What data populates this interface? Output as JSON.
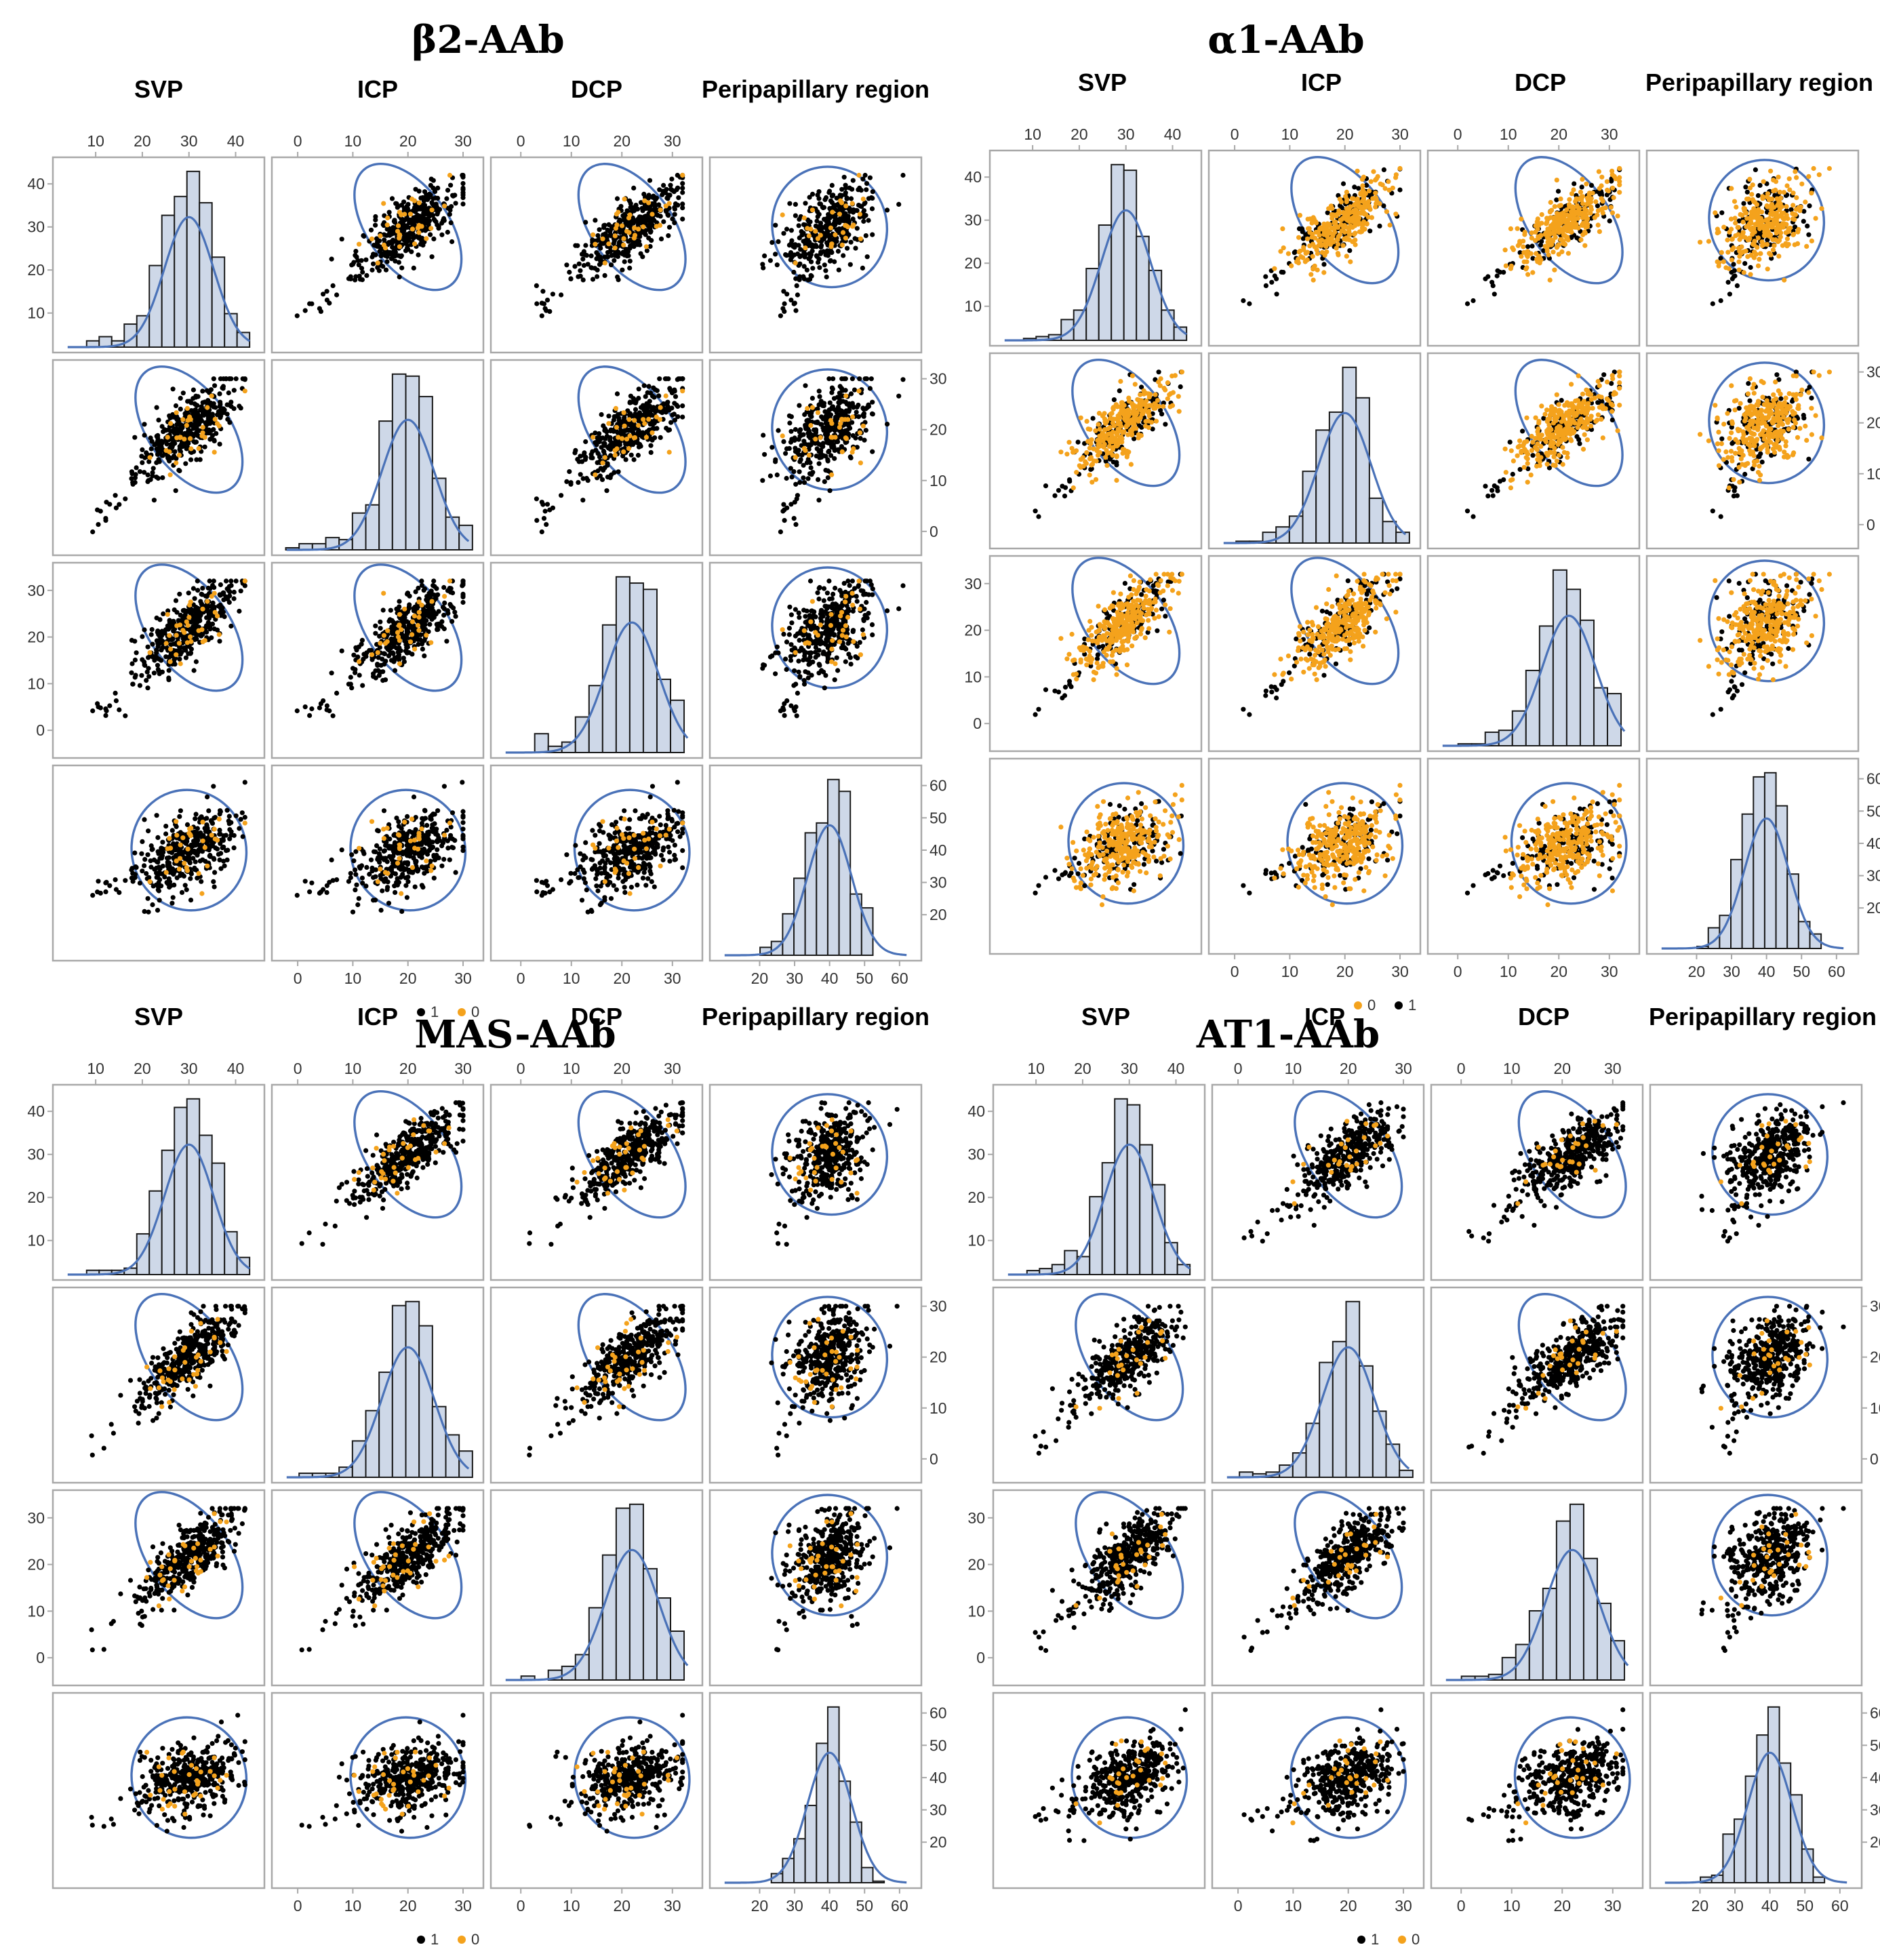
{
  "colors": {
    "group_1": "#000000",
    "group_0": "#f4a21c",
    "ellipse": "#4a72b8",
    "histogram_fill": "#ced8e8",
    "frame": "#a8a8a8"
  },
  "chart_data": [
    {
      "type": "scatter",
      "subtype": "scatterplot-matrix",
      "title": "β2-AAb",
      "variables": [
        "SVP",
        "ICP",
        "DCP",
        "Peripapillary  region"
      ],
      "variable_ranges": {
        "SVP": [
          4,
          43
        ],
        "ICP": [
          -2,
          31
        ],
        "DCP": [
          -3,
          33
        ],
        "Peripapillary  region": [
          10,
          62
        ]
      },
      "axis_ticks": {
        "SVP": [
          "10",
          "20",
          "30",
          "40"
        ],
        "ICP": [
          "0",
          "10",
          "20",
          "30"
        ],
        "DCP": [
          "0",
          "10",
          "20",
          "30"
        ],
        "Peripapillary  region": [
          "20",
          "30",
          "40",
          "50",
          "60"
        ]
      },
      "means": {
        "SVP": 30,
        "ICP": 20,
        "DCP": 22,
        "Peripapillary  region": 40
      },
      "stdevs": {
        "SVP": 5,
        "ICP": 4.5,
        "DCP": 5,
        "Peripapillary  region": 6
      },
      "legend": {
        "first": {
          "label": "1",
          "group": "1"
        },
        "second": {
          "label": "0",
          "group": "0"
        }
      },
      "group0_share": 0.12,
      "n_points": 430,
      "prediction_ellipse": true,
      "diagonal": "histogram with normal density curve"
    },
    {
      "type": "scatter",
      "subtype": "scatterplot-matrix",
      "title": "α1-AAb",
      "variables": [
        "SVP",
        "ICP",
        "DCP",
        "Peripapillary  region"
      ],
      "variable_ranges": {
        "SVP": [
          4,
          43
        ],
        "ICP": [
          -2,
          31
        ],
        "DCP": [
          -3,
          33
        ],
        "Peripapillary  region": [
          10,
          62
        ]
      },
      "axis_ticks": {
        "SVP": [
          "10",
          "20",
          "30",
          "40"
        ],
        "ICP": [
          "0",
          "10",
          "20",
          "30"
        ],
        "DCP": [
          "0",
          "10",
          "20",
          "30"
        ],
        "Peripapillary  region": [
          "20",
          "30",
          "40",
          "50",
          "60"
        ]
      },
      "means": {
        "SVP": 30,
        "ICP": 20,
        "DCP": 22,
        "Peripapillary  region": 40
      },
      "stdevs": {
        "SVP": 5,
        "ICP": 4.5,
        "DCP": 5,
        "Peripapillary  region": 6
      },
      "legend": {
        "first": {
          "label": "0",
          "group": "0"
        },
        "second": {
          "label": "1",
          "group": "1"
        }
      },
      "group0_share": 0.72,
      "n_points": 430,
      "prediction_ellipse": true,
      "diagonal": "histogram with normal density curve"
    },
    {
      "type": "scatter",
      "subtype": "scatterplot-matrix",
      "title": "MAS-AAb",
      "variables": [
        "SVP",
        "ICP",
        "DCP",
        "Peripapillary  region"
      ],
      "variable_ranges": {
        "SVP": [
          4,
          43
        ],
        "ICP": [
          -2,
          31
        ],
        "DCP": [
          -3,
          33
        ],
        "Peripapillary  region": [
          10,
          62
        ]
      },
      "axis_ticks": {
        "SVP": [
          "10",
          "20",
          "30",
          "40"
        ],
        "ICP": [
          "0",
          "10",
          "20",
          "30"
        ],
        "DCP": [
          "0",
          "10",
          "20",
          "30"
        ],
        "Peripapillary  region": [
          "20",
          "30",
          "40",
          "50",
          "60"
        ]
      },
      "means": {
        "SVP": 30,
        "ICP": 20,
        "DCP": 22,
        "Peripapillary  region": 40
      },
      "stdevs": {
        "SVP": 5,
        "ICP": 4.5,
        "DCP": 5,
        "Peripapillary  region": 6
      },
      "legend": {
        "first": {
          "label": "1",
          "group": "1"
        },
        "second": {
          "label": "0",
          "group": "0"
        }
      },
      "group0_share": 0.1,
      "n_points": 430,
      "prediction_ellipse": true,
      "diagonal": "histogram with normal density curve"
    },
    {
      "type": "scatter",
      "subtype": "scatterplot-matrix",
      "title": "AT1-AAb",
      "variables": [
        "SVP",
        "ICP",
        "DCP",
        "Peripapillary  region"
      ],
      "variable_ranges": {
        "SVP": [
          4,
          43
        ],
        "ICP": [
          -2,
          31
        ],
        "DCP": [
          -3,
          33
        ],
        "Peripapillary  region": [
          10,
          62
        ]
      },
      "axis_ticks": {
        "SVP": [
          "10",
          "20",
          "30",
          "40"
        ],
        "ICP": [
          "0",
          "10",
          "20",
          "30"
        ],
        "DCP": [
          "0",
          "10",
          "20",
          "30"
        ],
        "Peripapillary  region": [
          "20",
          "30",
          "40",
          "50",
          "60"
        ]
      },
      "means": {
        "SVP": 30,
        "ICP": 20,
        "DCP": 22,
        "Peripapillary  region": 40
      },
      "stdevs": {
        "SVP": 5,
        "ICP": 4.5,
        "DCP": 5,
        "Peripapillary  region": 6
      },
      "legend": {
        "first": {
          "label": "1",
          "group": "1"
        },
        "second": {
          "label": "0",
          "group": "0"
        }
      },
      "group0_share": 0.08,
      "n_points": 430,
      "prediction_ellipse": true,
      "diagonal": "histogram with normal density curve"
    }
  ]
}
